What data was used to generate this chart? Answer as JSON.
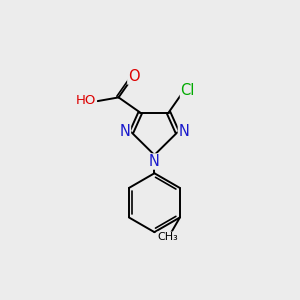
{
  "background_color": "#ececec",
  "bond_color": "#000000",
  "bond_width": 1.4,
  "atom_colors": {
    "C": "#000000",
    "N": "#1919cc",
    "O": "#dd0000",
    "Cl": "#00aa00",
    "H": "#666666"
  },
  "font_size": 9.5,
  "fig_size": [
    3.0,
    3.0
  ],
  "dpi": 100
}
